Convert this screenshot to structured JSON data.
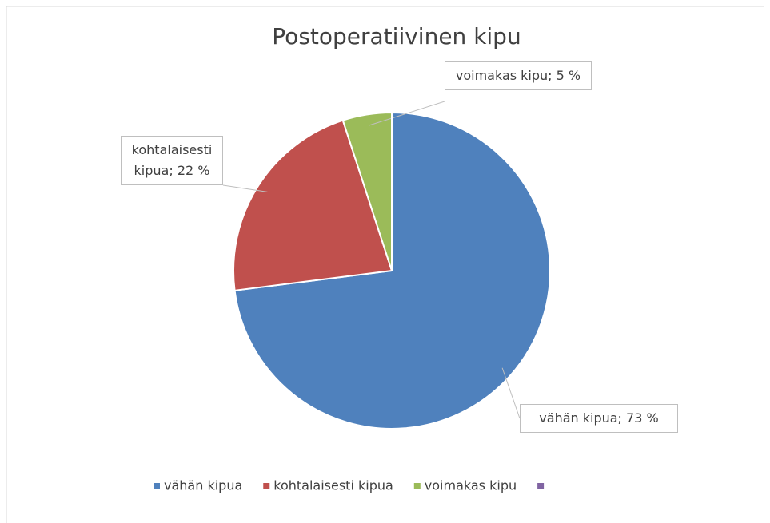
{
  "chart_data": {
    "type": "pie",
    "title": "Postoperatiivinen kipu",
    "categories": [
      "vähän kipua",
      "kohtalaisesti kipua",
      "voimakas kipu",
      null
    ],
    "values": [
      73,
      22,
      5,
      0
    ],
    "value_labels": [
      "vähän kipua; 73 %",
      "kohtalaisesti kipua; 22 %",
      "voimakas kipu; 5 %",
      null
    ],
    "colors": [
      "#4f81bd",
      "#c0504d",
      "#9bbb59",
      "#8064a2"
    ],
    "legend": "bottom"
  }
}
